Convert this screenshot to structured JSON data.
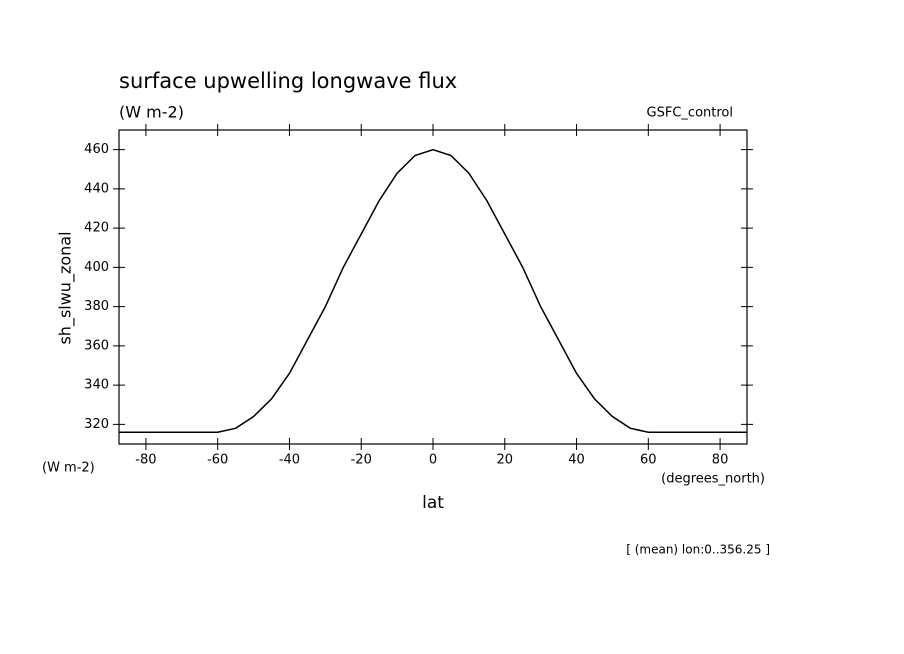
{
  "chart_data": {
    "type": "line",
    "title": "surface upwelling longwave flux",
    "subtitle": "(W m-2)",
    "dataset": "GSFC_control",
    "y_label": "sh_slwu_zonal",
    "y_units": "(W m-2)",
    "x_units": "(degrees_north)",
    "x_label": "lat",
    "footnote": "[ (mean) lon:0..356.25 ]",
    "x": [
      -87.5,
      -80,
      -70,
      -60,
      -55,
      -50,
      -45,
      -40,
      -35,
      -30,
      -25,
      -20,
      -15,
      -10,
      -5,
      0,
      5,
      10,
      15,
      20,
      25,
      30,
      35,
      40,
      45,
      50,
      55,
      60,
      70,
      80,
      87.5
    ],
    "series": [
      {
        "color": "#000000",
        "values": [
          316,
          316,
          316,
          316,
          318,
          324,
          333,
          346,
          363,
          380,
          400,
          417,
          434,
          448,
          457,
          460,
          457,
          448,
          434,
          417,
          400,
          380,
          363,
          346,
          333,
          324,
          318,
          316,
          316,
          316,
          316
        ]
      }
    ],
    "xlim": [
      -87.5,
      87.5
    ],
    "ylim": [
      310,
      470
    ],
    "xticks": [
      -80,
      -60,
      -40,
      -20,
      0,
      20,
      40,
      60,
      80
    ],
    "yticks": [
      320,
      340,
      360,
      380,
      400,
      420,
      440,
      460
    ]
  }
}
